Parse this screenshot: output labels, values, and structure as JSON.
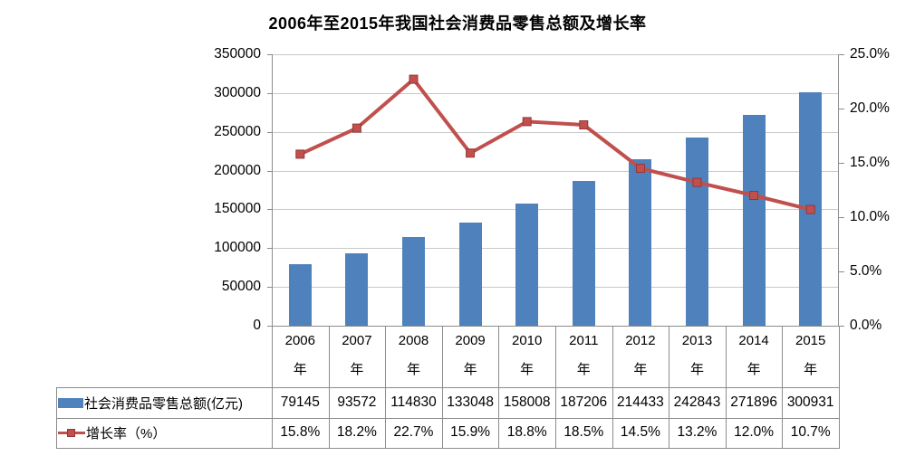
{
  "title": "2006年至2015年我国社会消费品零售总额及增长率",
  "chart_data": {
    "type": "bar+line",
    "categories": [
      "2006年",
      "2007年",
      "2008年",
      "2009年",
      "2010年",
      "2011年",
      "2012年",
      "2013年",
      "2014年",
      "2015年"
    ],
    "x_label_top": [
      "2006",
      "2007",
      "2008",
      "2009",
      "2010",
      "2011",
      "2012",
      "2013",
      "2014",
      "2015"
    ],
    "x_label_bottom": "年",
    "series": [
      {
        "name": "社会消费品零售总额(亿元)",
        "type": "bar",
        "axis": "left",
        "color": "#4F81BD",
        "values": [
          79145,
          93572,
          114830,
          133048,
          158008,
          187206,
          214433,
          242843,
          271896,
          300931
        ],
        "display": [
          "79145",
          "93572",
          "114830",
          "133048",
          "158008",
          "187206",
          "214433",
          "242843",
          "271896",
          "300931"
        ]
      },
      {
        "name": "增长率（%）",
        "type": "line",
        "axis": "right",
        "color": "#C0504D",
        "marker": "square",
        "values": [
          15.8,
          18.2,
          22.7,
          15.9,
          18.8,
          18.5,
          14.5,
          13.2,
          12.0,
          10.7
        ],
        "display": [
          "15.8%",
          "18.2%",
          "22.7%",
          "15.9%",
          "18.8%",
          "18.5%",
          "14.5%",
          "13.2%",
          "12.0%",
          "10.7%"
        ]
      }
    ],
    "left_axis": {
      "min": 0,
      "max": 350000,
      "step": 50000,
      "tick_labels": [
        "350000",
        "300000",
        "250000",
        "200000",
        "150000",
        "100000",
        "50000",
        "0"
      ]
    },
    "right_axis": {
      "min": 0,
      "max": 25,
      "step": 5,
      "tick_labels": [
        "25.0%",
        "20.0%",
        "15.0%",
        "10.0%",
        "5.0%",
        "0.0%"
      ]
    },
    "grid": true,
    "legend_position": "bottom-table-left"
  },
  "colors": {
    "bar": "#4F81BD",
    "line": "#C0504D",
    "marker_border": "#953735",
    "grid": "#C9C9C9",
    "axis": "#8C8C8C",
    "table_border": "#8C8C8C",
    "text": "#000000",
    "background": "#FFFFFF"
  }
}
